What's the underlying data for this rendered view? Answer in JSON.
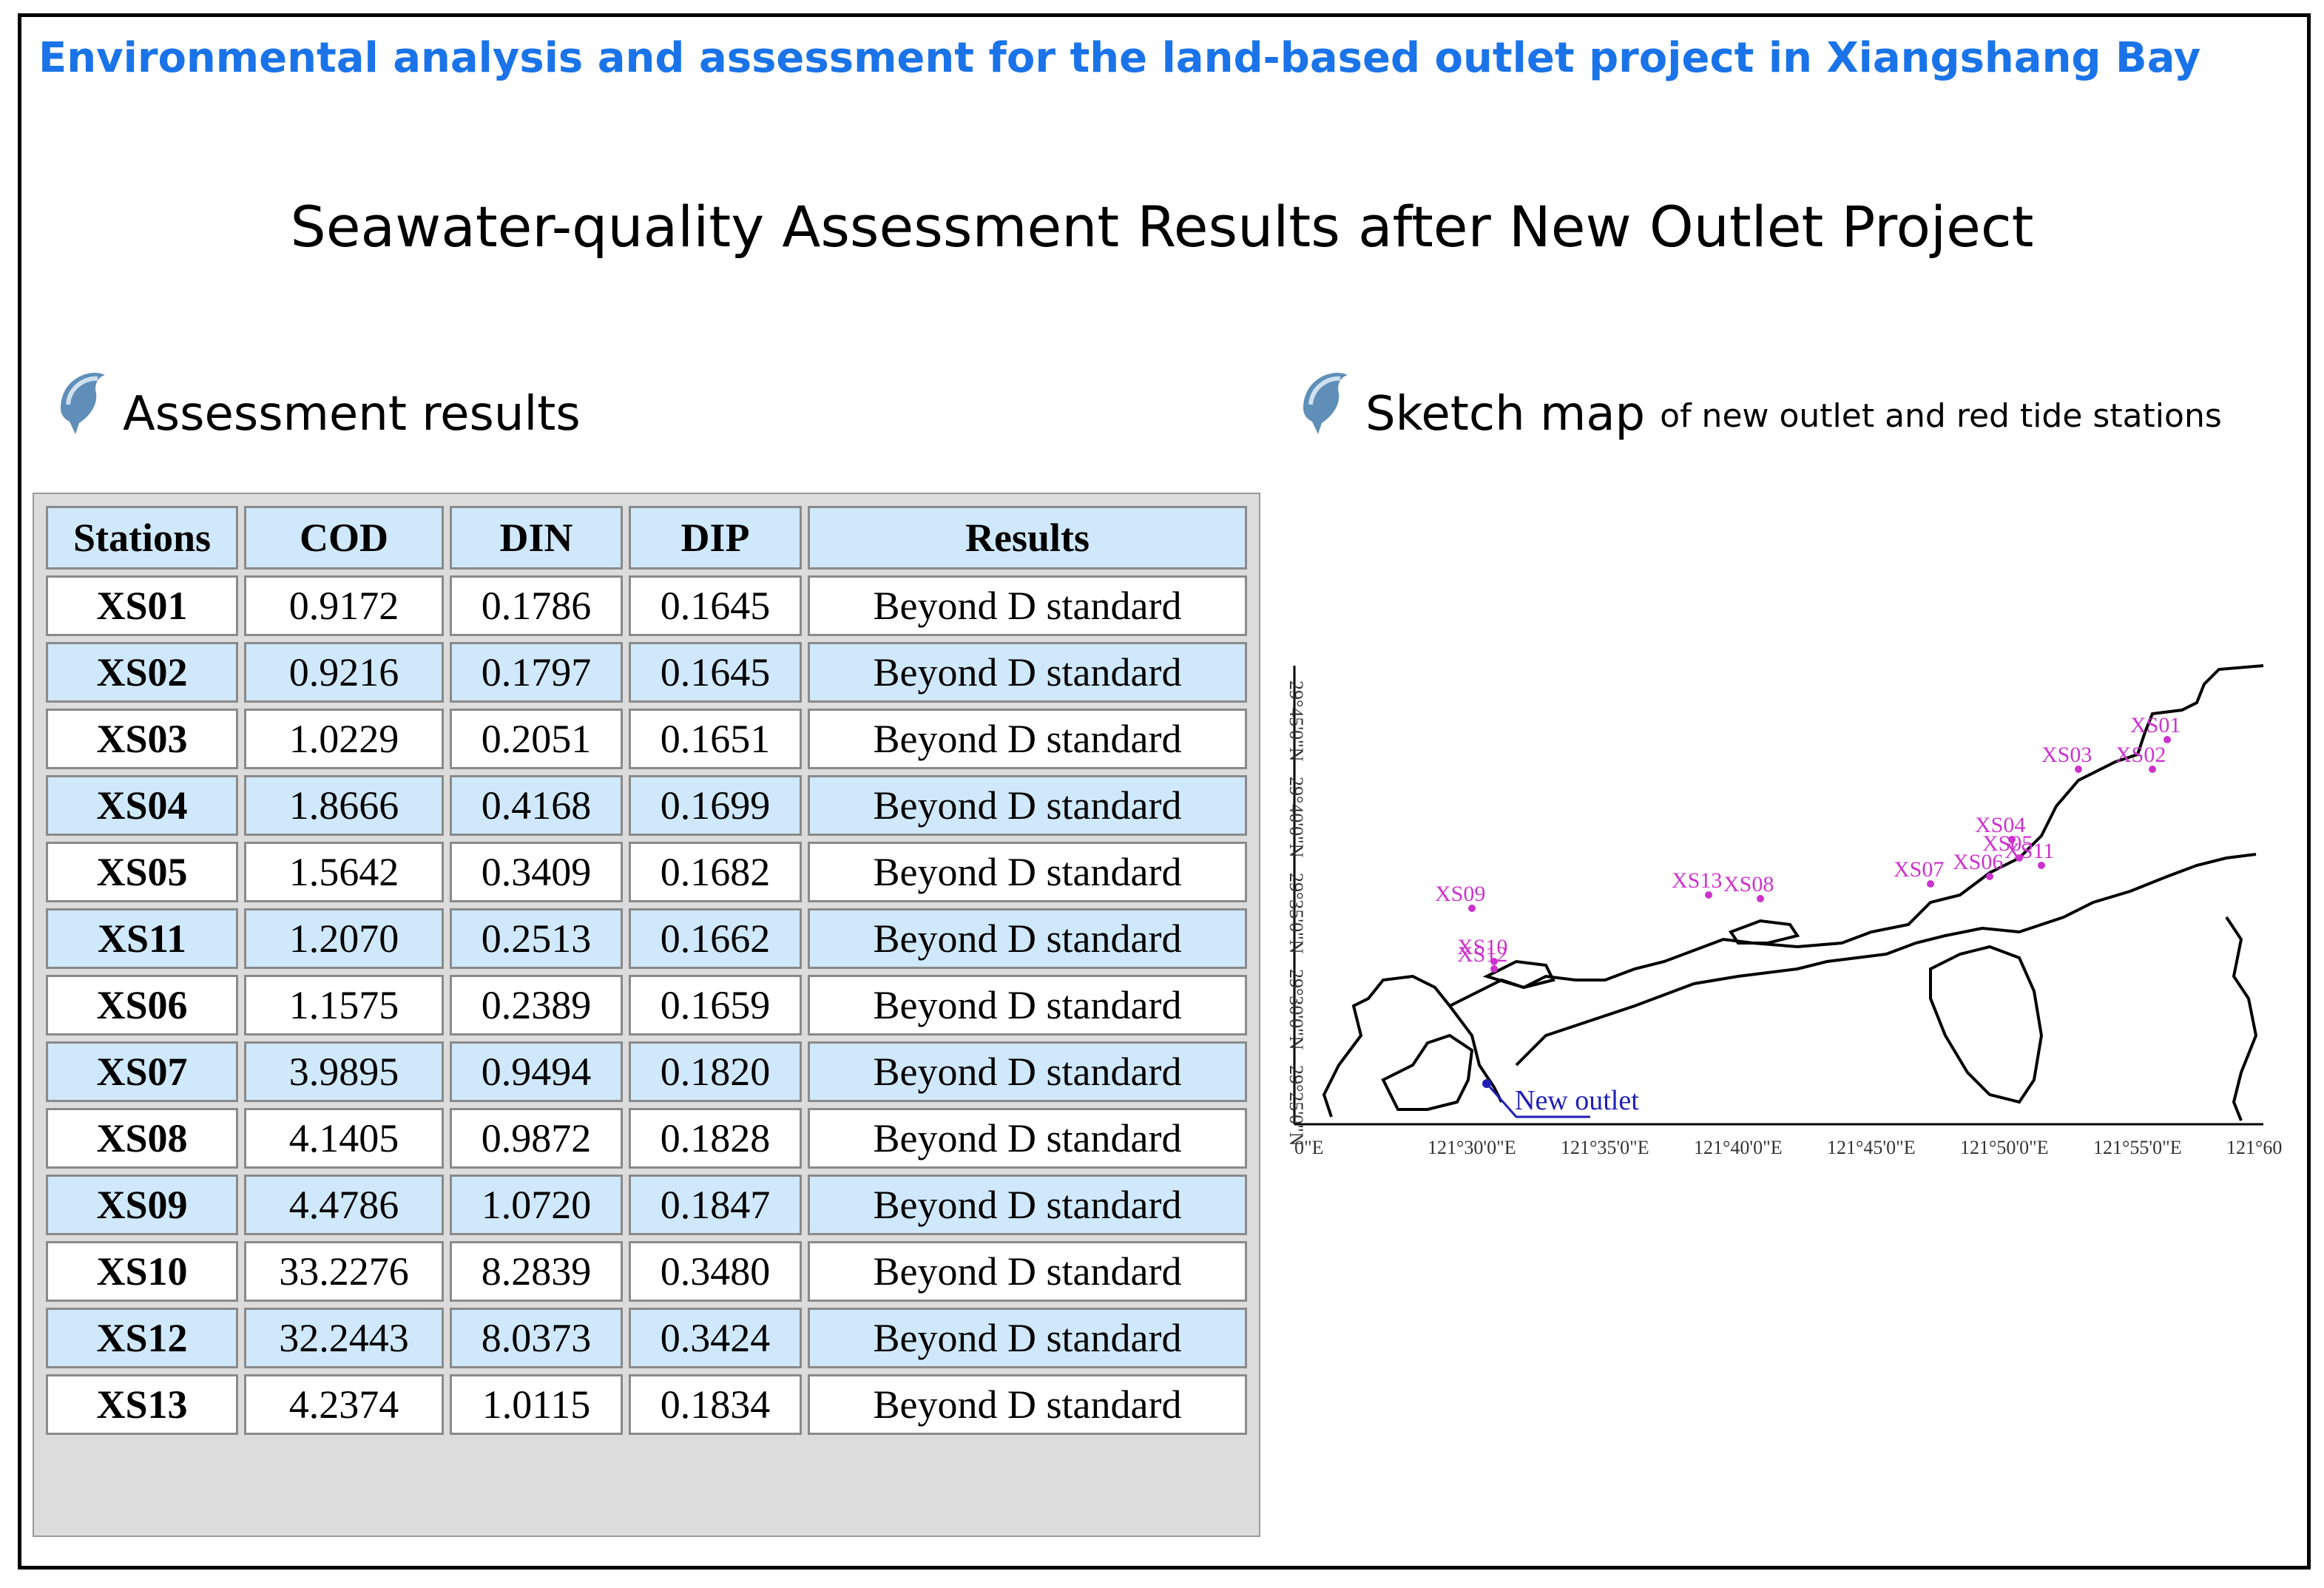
{
  "header": {
    "title": "Environmental analysis and assessment for the land-based outlet project in Xiangshang Bay",
    "subtitle": "Seawater-quality Assessment Results after New Outlet Project"
  },
  "assessment": {
    "heading": "Assessment results",
    "columns": [
      "Stations",
      "COD",
      "DIN",
      "DIP",
      "Results"
    ],
    "rows": [
      [
        "XS01",
        "0.9172",
        "0.1786",
        "0.1645",
        "Beyond D standard"
      ],
      [
        "XS02",
        "0.9216",
        "0.1797",
        "0.1645",
        "Beyond D standard"
      ],
      [
        "XS03",
        "1.0229",
        "0.2051",
        "0.1651",
        "Beyond D standard"
      ],
      [
        "XS04",
        "1.8666",
        "0.4168",
        "0.1699",
        "Beyond D standard"
      ],
      [
        "XS05",
        "1.5642",
        "0.3409",
        "0.1682",
        "Beyond D standard"
      ],
      [
        "XS11",
        "1.2070",
        "0.2513",
        "0.1662",
        "Beyond D standard"
      ],
      [
        "XS06",
        "1.1575",
        "0.2389",
        "0.1659",
        "Beyond D standard"
      ],
      [
        "XS07",
        "3.9895",
        "0.9494",
        "0.1820",
        "Beyond D standard"
      ],
      [
        "XS08",
        "4.1405",
        "0.9872",
        "0.1828",
        "Beyond D standard"
      ],
      [
        "XS09",
        "4.4786",
        "1.0720",
        "0.1847",
        "Beyond D standard"
      ],
      [
        "XS10",
        "33.2276",
        "8.2839",
        "0.3480",
        "Beyond D standard"
      ],
      [
        "XS12",
        "32.2443",
        "8.0373",
        "0.3424",
        "Beyond D standard"
      ],
      [
        "XS13",
        "4.2374",
        "1.0115",
        "0.1834",
        "Beyond D standard"
      ]
    ]
  },
  "sketch": {
    "heading": "Sketch map",
    "heading_suffix": "of new outlet and red tide stations",
    "outlet_label": "New outlet",
    "station_labels": [
      "XS01",
      "XS02",
      "XS03",
      "XS04",
      "XS05",
      "XS11",
      "XS06",
      "XS07",
      "XS08",
      "XS13",
      "XS09",
      "XS10",
      "XS12"
    ],
    "lat_labels": [
      "29°45'0\"N",
      "29°40'0\"N",
      "29°35'0\"N",
      "29°30'0\"N",
      "29°25'0\"N"
    ],
    "lon_labels": [
      "0\"E",
      "121°30'0\"E",
      "121°35'0\"E",
      "121°40'0\"E",
      "121°45'0\"E",
      "121°50'0\"E",
      "121°55'0\"E",
      "121°60"
    ]
  },
  "colors": {
    "title_blue": "#1a73e8",
    "header_fill": "#cfe8fb",
    "station_magenta": "#cc33cc",
    "outlet_blue": "#1f1fb8"
  },
  "icons": {
    "section_bullet": "dolphin-icon"
  }
}
